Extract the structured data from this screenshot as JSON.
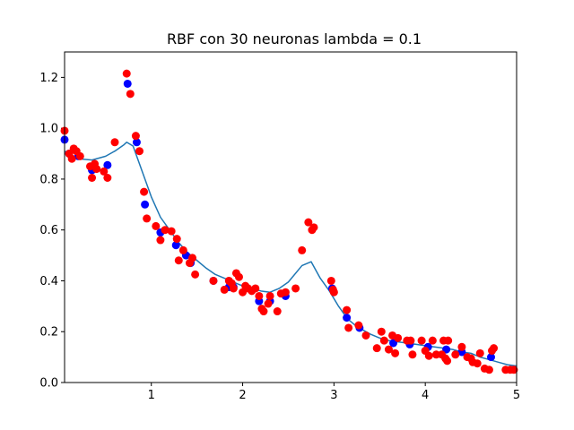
{
  "chart_data": {
    "type": "scatter",
    "title": "RBF con 30 neuronas lambda = 0.1",
    "xlabel": "",
    "ylabel": "",
    "xlim": [
      0.05,
      5.0
    ],
    "ylim": [
      0.0,
      1.3
    ],
    "x_ticks": [
      1,
      2,
      3,
      4,
      5
    ],
    "x_tick_labels": [
      "1",
      "2",
      "3",
      "4",
      "5"
    ],
    "y_ticks": [
      0.0,
      0.2,
      0.4,
      0.6,
      0.8,
      1.0,
      1.2
    ],
    "y_tick_labels": [
      "0.0",
      "0.2",
      "0.4",
      "0.6",
      "0.8",
      "1.0",
      "1.2"
    ],
    "grid": false,
    "legend": "none",
    "series": [
      {
        "kind": "line",
        "color": "#1f77b4",
        "x": [
          0.05,
          0.2,
          0.35,
          0.5,
          0.6,
          0.7,
          0.73,
          0.8,
          0.9,
          1.0,
          1.1,
          1.2,
          1.3,
          1.4,
          1.5,
          1.6,
          1.7,
          1.8,
          1.9,
          2.0,
          2.1,
          2.2,
          2.3,
          2.4,
          2.5,
          2.65,
          2.75,
          2.85,
          2.95,
          3.05,
          3.15,
          3.25,
          3.4,
          3.5,
          3.6,
          3.7,
          3.8,
          3.9,
          4.0,
          4.1,
          4.2,
          4.3,
          4.4,
          4.5,
          4.6,
          4.7,
          4.8,
          4.9,
          5.0
        ],
        "y": [
          0.91,
          0.88,
          0.875,
          0.89,
          0.91,
          0.935,
          0.945,
          0.93,
          0.83,
          0.73,
          0.65,
          0.6,
          0.55,
          0.51,
          0.48,
          0.45,
          0.425,
          0.41,
          0.395,
          0.38,
          0.37,
          0.36,
          0.355,
          0.37,
          0.395,
          0.46,
          0.475,
          0.41,
          0.36,
          0.3,
          0.25,
          0.22,
          0.19,
          0.175,
          0.165,
          0.16,
          0.155,
          0.15,
          0.145,
          0.14,
          0.135,
          0.13,
          0.12,
          0.115,
          0.1,
          0.09,
          0.08,
          0.07,
          0.065
        ]
      },
      {
        "kind": "points",
        "color": "#0000ff",
        "x": [
          0.05,
          0.1,
          0.2,
          0.35,
          0.52,
          0.74,
          0.84,
          0.93,
          1.1,
          1.27,
          1.38,
          1.43,
          1.68,
          1.85,
          1.9,
          2.18,
          2.3,
          2.47,
          2.98,
          3.14,
          3.28,
          3.65,
          3.83,
          4.03,
          4.23,
          4.4,
          4.72
        ],
        "y": [
          0.955,
          0.9,
          0.89,
          0.835,
          0.855,
          1.175,
          0.945,
          0.7,
          0.59,
          0.54,
          0.5,
          0.47,
          0.4,
          0.375,
          0.375,
          0.32,
          0.32,
          0.34,
          0.37,
          0.255,
          0.215,
          0.155,
          0.15,
          0.14,
          0.13,
          0.12,
          0.1
        ]
      },
      {
        "kind": "points",
        "color": "#ff0000",
        "x": [
          0.05,
          0.1,
          0.13,
          0.15,
          0.18,
          0.22,
          0.33,
          0.35,
          0.38,
          0.4,
          0.48,
          0.52,
          0.6,
          0.73,
          0.77,
          0.83,
          0.87,
          0.92,
          0.95,
          1.05,
          1.1,
          1.15,
          1.22,
          1.28,
          1.3,
          1.35,
          1.42,
          1.45,
          1.48,
          1.68,
          1.8,
          1.85,
          1.88,
          1.9,
          1.93,
          1.96,
          2.0,
          2.03,
          2.06,
          2.1,
          2.14,
          2.18,
          2.21,
          2.23,
          2.28,
          2.3,
          2.38,
          2.42,
          2.47,
          2.58,
          2.65,
          2.72,
          2.76,
          2.78,
          2.97,
          2.99,
          3.0,
          3.14,
          3.16,
          3.27,
          3.35,
          3.47,
          3.52,
          3.55,
          3.6,
          3.64,
          3.67,
          3.7,
          3.8,
          3.84,
          3.86,
          3.96,
          4.0,
          4.04,
          4.08,
          4.12,
          4.18,
          4.2,
          4.22,
          4.24,
          4.25,
          4.33,
          4.4,
          4.46,
          4.5,
          4.52,
          4.57,
          4.6,
          4.65,
          4.7,
          4.73,
          4.75,
          4.88,
          4.93,
          4.97
        ],
        "y": [
          0.99,
          0.9,
          0.88,
          0.92,
          0.91,
          0.89,
          0.85,
          0.805,
          0.86,
          0.84,
          0.83,
          0.805,
          0.945,
          1.215,
          1.135,
          0.97,
          0.91,
          0.75,
          0.645,
          0.615,
          0.56,
          0.6,
          0.595,
          0.565,
          0.48,
          0.52,
          0.47,
          0.49,
          0.425,
          0.4,
          0.365,
          0.4,
          0.39,
          0.37,
          0.43,
          0.415,
          0.355,
          0.38,
          0.37,
          0.36,
          0.37,
          0.34,
          0.29,
          0.28,
          0.31,
          0.34,
          0.28,
          0.35,
          0.355,
          0.37,
          0.52,
          0.63,
          0.6,
          0.61,
          0.4,
          0.365,
          0.355,
          0.285,
          0.215,
          0.225,
          0.185,
          0.135,
          0.2,
          0.165,
          0.13,
          0.185,
          0.115,
          0.175,
          0.165,
          0.165,
          0.11,
          0.165,
          0.125,
          0.105,
          0.165,
          0.11,
          0.11,
          0.165,
          0.095,
          0.085,
          0.165,
          0.11,
          0.14,
          0.1,
          0.095,
          0.08,
          0.075,
          0.115,
          0.055,
          0.05,
          0.125,
          0.135,
          0.05,
          0.05,
          0.05
        ]
      }
    ]
  }
}
